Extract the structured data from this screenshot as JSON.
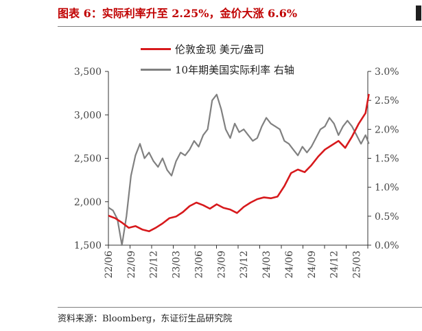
{
  "title": "图表 6：实际利率升至 2.25%，金价大涨 6.6%",
  "source": "资料来源：Bloomberg，东证衍生品研究院",
  "chart_data": {
    "type": "line",
    "legend": [
      "伦敦金现 美元/盎司",
      "10年期美国实际利率 右轴"
    ],
    "left_axis": {
      "min": 1500,
      "max": 3500,
      "ticks": [
        "1,500",
        "2,000",
        "2,500",
        "3,000",
        "3,500"
      ]
    },
    "right_axis": {
      "min": 0.0,
      "max": 3.0,
      "ticks": [
        "0.0%",
        "0.5%",
        "1.0%",
        "1.5%",
        "2.0%",
        "2.5%",
        "3.0%"
      ]
    },
    "x_labels": [
      "22/06",
      "22/09",
      "22/12",
      "23/03",
      "23/06",
      "23/09",
      "23/12",
      "24/03",
      "24/06",
      "24/09",
      "24/12",
      "25/03"
    ],
    "series": [
      {
        "name": "伦敦金现 美元/盎司",
        "axis": "left",
        "color": "#d7191c",
        "x": [
          0,
          0.3,
          0.6,
          0.9,
          1.2,
          1.5,
          1.8,
          2.1,
          2.4,
          2.7,
          3.0,
          3.3,
          3.6,
          3.9,
          4.2,
          4.5,
          4.8,
          5.1,
          5.4,
          5.7,
          6.0,
          6.3,
          6.6,
          6.9,
          7.2,
          7.5,
          7.8,
          8.1,
          8.4,
          8.7,
          9.0,
          9.3,
          9.6,
          9.9,
          10.2,
          10.5,
          10.8,
          11.1,
          11.4,
          11.55
        ],
        "values": [
          1840,
          1810,
          1760,
          1700,
          1720,
          1680,
          1660,
          1700,
          1750,
          1810,
          1830,
          1880,
          1950,
          1990,
          1960,
          1920,
          1970,
          1930,
          1910,
          1870,
          1940,
          1990,
          2030,
          2050,
          2040,
          2060,
          2180,
          2330,
          2370,
          2340,
          2420,
          2520,
          2600,
          2650,
          2700,
          2620,
          2750,
          2900,
          3020,
          3240
        ]
      },
      {
        "name": "10年期美国实际利率 右轴",
        "axis": "right",
        "color": "#808080",
        "x": [
          0,
          0.2,
          0.4,
          0.6,
          0.8,
          1.0,
          1.2,
          1.4,
          1.6,
          1.8,
          2.0,
          2.2,
          2.4,
          2.6,
          2.8,
          3.0,
          3.2,
          3.4,
          3.6,
          3.8,
          4.0,
          4.2,
          4.4,
          4.6,
          4.8,
          5.0,
          5.2,
          5.4,
          5.6,
          5.8,
          6.0,
          6.2,
          6.4,
          6.6,
          6.8,
          7.0,
          7.2,
          7.4,
          7.6,
          7.8,
          8.0,
          8.2,
          8.4,
          8.6,
          8.8,
          9.0,
          9.2,
          9.4,
          9.6,
          9.8,
          10.0,
          10.2,
          10.4,
          10.6,
          10.8,
          11.0,
          11.2,
          11.4,
          11.55
        ],
        "values": [
          0.65,
          0.6,
          0.45,
          0.0,
          0.5,
          1.2,
          1.55,
          1.75,
          1.5,
          1.6,
          1.45,
          1.35,
          1.5,
          1.3,
          1.2,
          1.45,
          1.6,
          1.55,
          1.65,
          1.8,
          1.7,
          1.9,
          2.0,
          2.5,
          2.6,
          2.35,
          2.0,
          1.85,
          2.1,
          1.95,
          2.0,
          1.9,
          1.8,
          1.85,
          2.05,
          2.2,
          2.1,
          2.05,
          2.0,
          1.8,
          1.75,
          1.65,
          1.55,
          1.7,
          1.6,
          1.7,
          1.85,
          2.0,
          2.05,
          2.2,
          2.1,
          1.9,
          2.05,
          2.15,
          2.05,
          1.9,
          1.75,
          1.9,
          1.75
        ]
      }
    ]
  }
}
